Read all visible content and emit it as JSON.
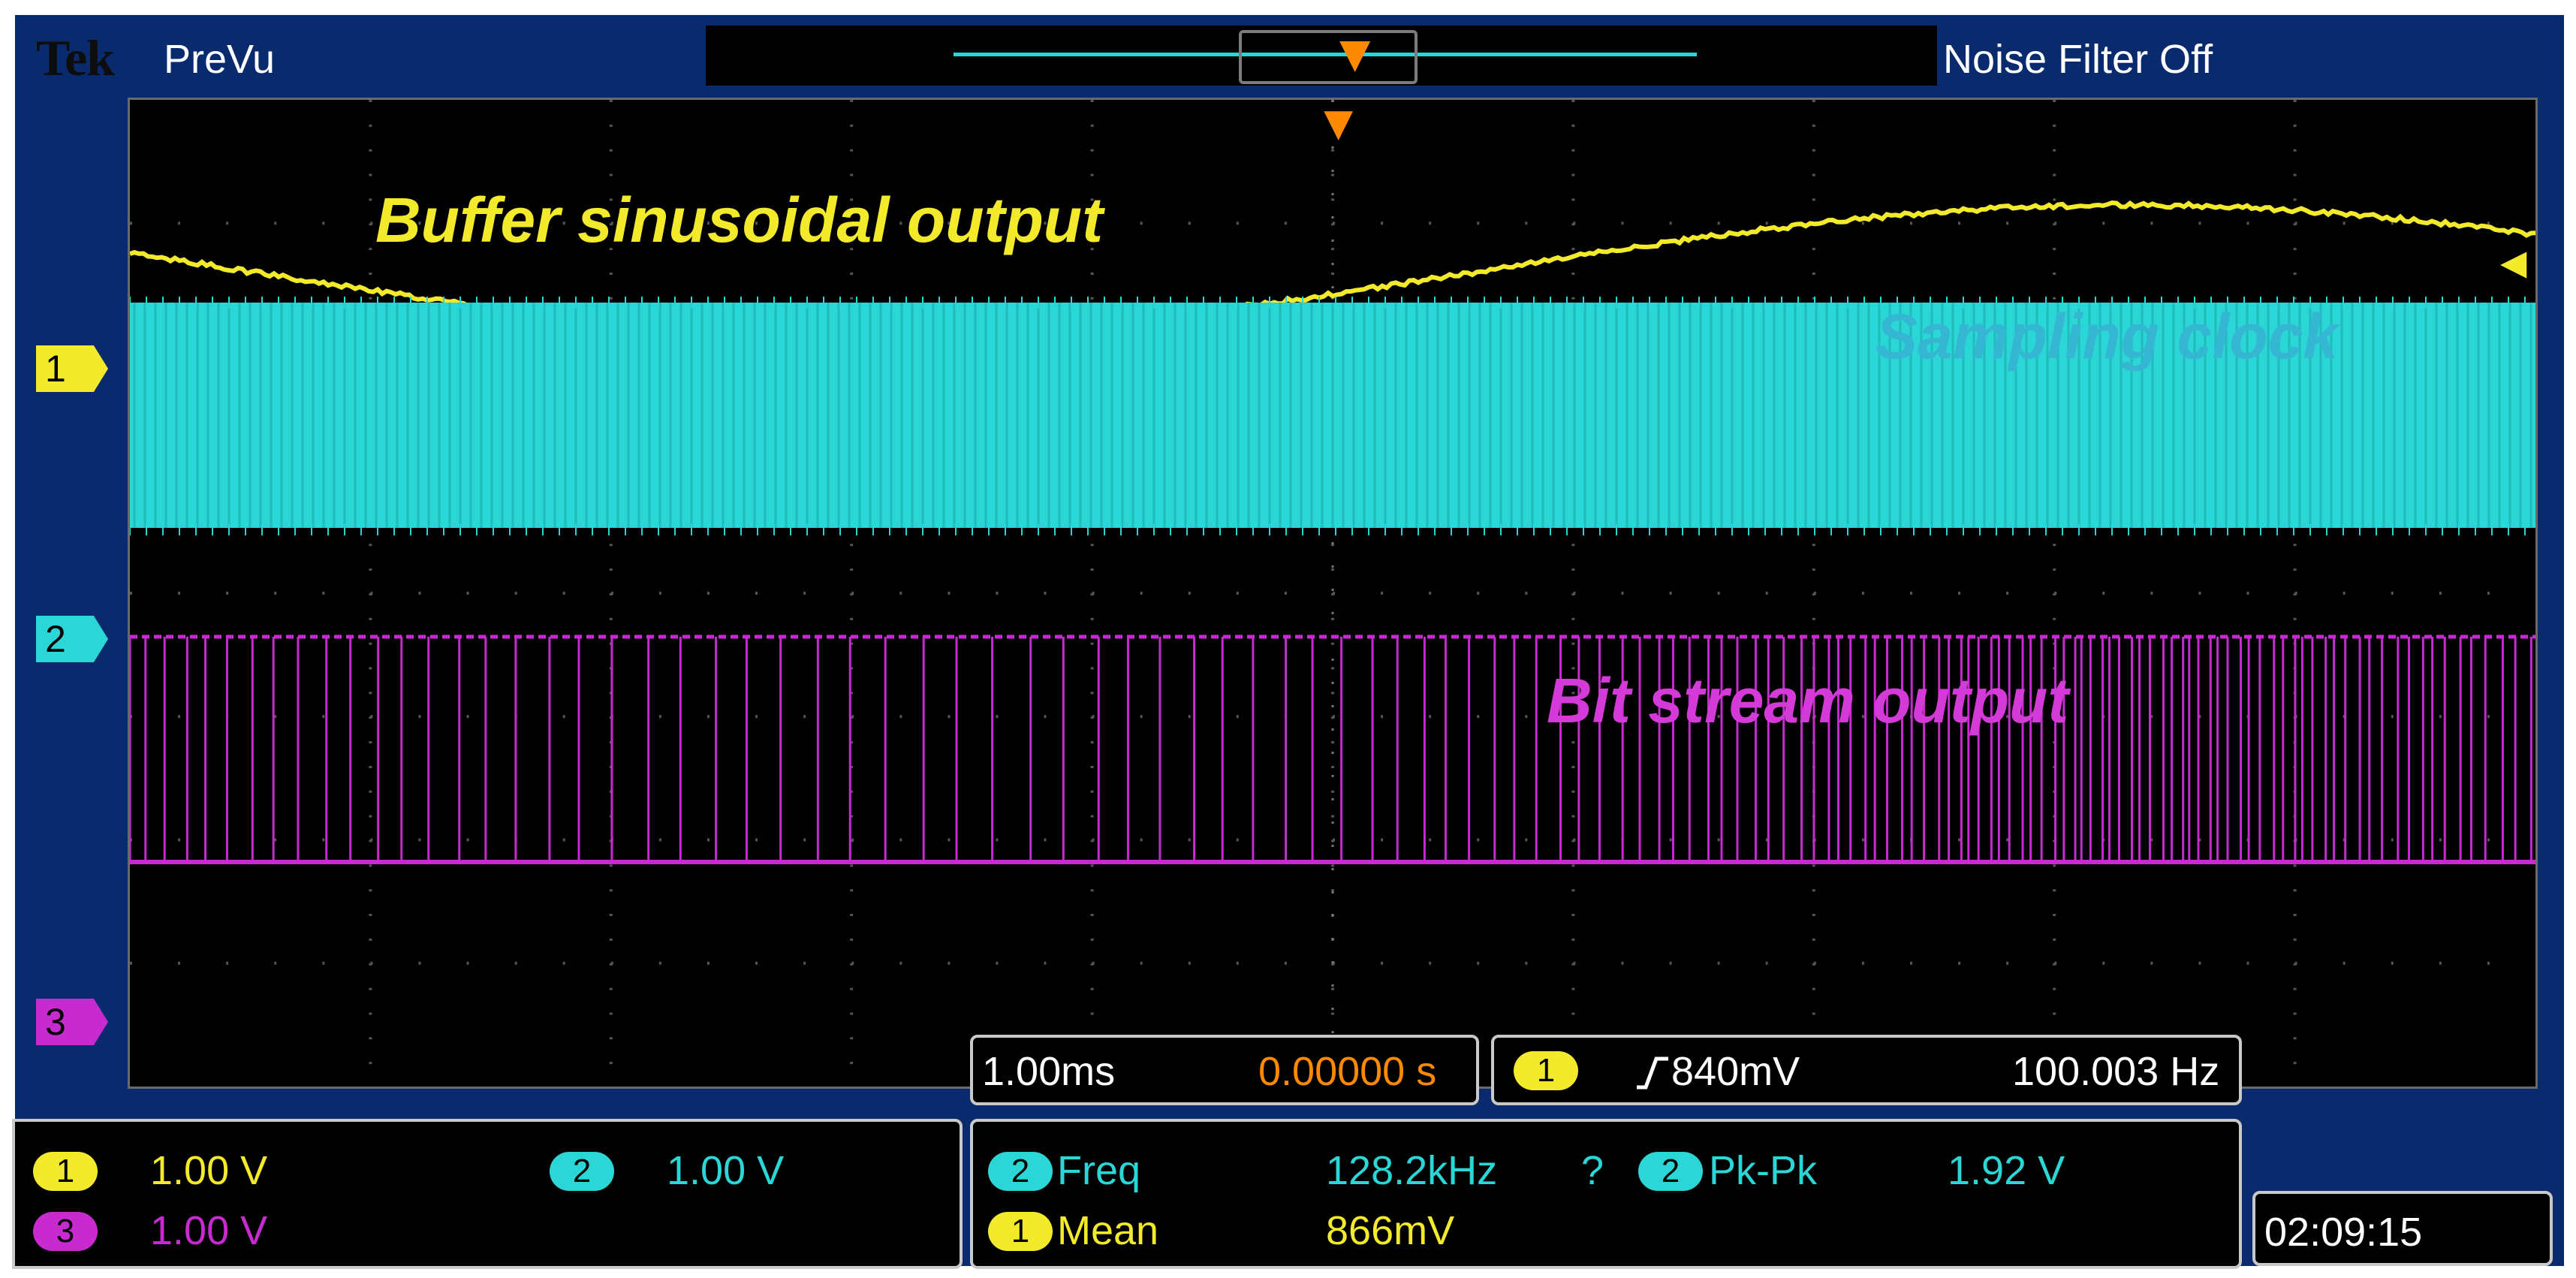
{
  "header": {
    "brand": "Tek",
    "mode": "PreVu",
    "noise_filter": "Noise Filter Off"
  },
  "colors": {
    "ch1": "#f2ea2a",
    "ch2": "#2bd6d6",
    "ch3": "#c72bd0",
    "orange": "#ff8a00",
    "frame": "#0a2a6e"
  },
  "channel_markers": [
    "1",
    "2",
    "3"
  ],
  "annotations": {
    "buffer": "Buffer sinusoidal output",
    "clock": "Sampling clock",
    "bitstream": "Bit stream output"
  },
  "timebase": {
    "scale": "1.00ms",
    "position": "0.00000 s"
  },
  "trigger": {
    "channel": "1",
    "slope_icon": "rising-edge-icon",
    "level": "840mV",
    "frequency": "100.003 Hz"
  },
  "channels": [
    {
      "id": "1",
      "scale": "1.00 V"
    },
    {
      "id": "2",
      "scale": "1.00 V"
    },
    {
      "id": "3",
      "scale": "1.00 V"
    }
  ],
  "measurements": [
    {
      "channel": "2",
      "name": "Freq",
      "value": "128.2kHz",
      "flag": "?"
    },
    {
      "channel": "2",
      "name": "Pk-Pk",
      "value": "1.92 V"
    },
    {
      "channel": "1",
      "name": "Mean",
      "value": "866mV"
    }
  ],
  "clock": "02:09:15"
}
